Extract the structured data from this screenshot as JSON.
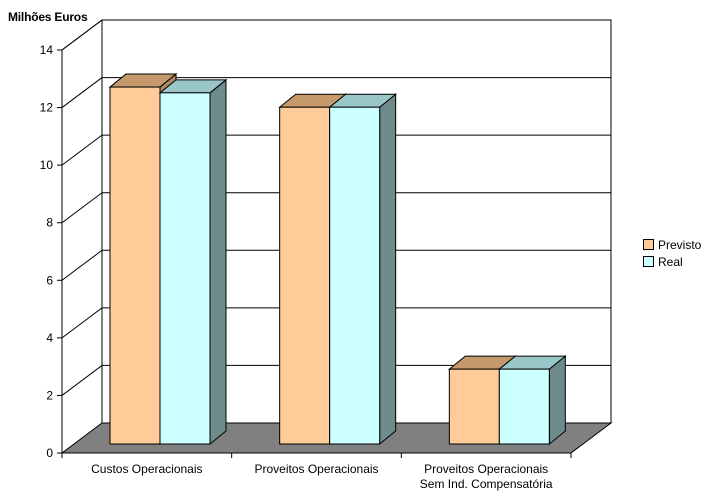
{
  "chart_data": {
    "type": "bar",
    "ylabel": "Milhões Euros",
    "ylim": [
      0,
      14
    ],
    "yticks": [
      0,
      2,
      4,
      6,
      8,
      10,
      12,
      14
    ],
    "grid": true,
    "legend_position": "right",
    "categories": [
      [
        "Custos Operacionais"
      ],
      [
        "Proveitos Operacionais"
      ],
      [
        "Proveitos Operacionais",
        "Sem Ind. Compensatória"
      ]
    ],
    "series": [
      {
        "name": "Previsto",
        "values": [
          12.4,
          11.7,
          2.6
        ],
        "color": "#FFCC99",
        "top_color": "#C49A6C",
        "side_color": "#B08A62"
      },
      {
        "name": "Real",
        "values": [
          12.2,
          11.7,
          2.6
        ],
        "color": "#CCFFFF",
        "top_color": "#99C7C7",
        "side_color": "#6E8A8A"
      }
    ],
    "floor_color": "#808080"
  }
}
